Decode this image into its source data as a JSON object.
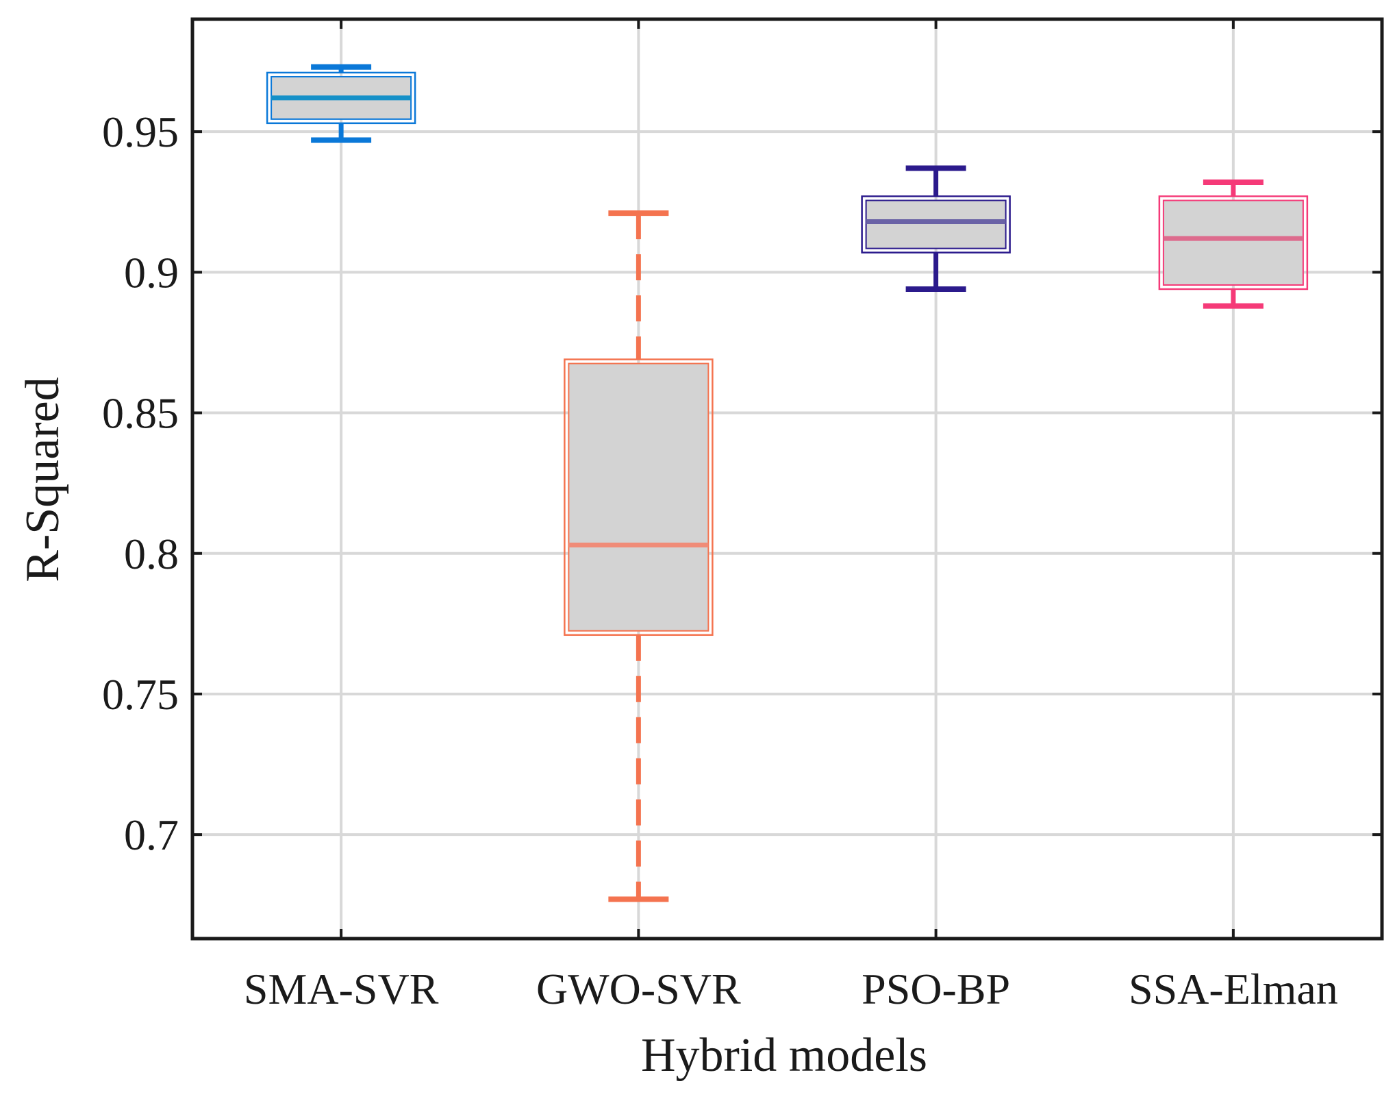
{
  "chart_data": {
    "type": "box",
    "title": "",
    "xlabel": "Hybrid models",
    "ylabel": "R-Squared",
    "ylim": [
      0.663,
      0.99
    ],
    "yticks": [
      0.7,
      0.75,
      0.8,
      0.85,
      0.9,
      0.95
    ],
    "ytick_labels": [
      "0.7",
      "0.75",
      "0.8",
      "0.85",
      "0.9",
      "0.95"
    ],
    "grid": true,
    "categories": [
      "SMA-SVR",
      "GWO-SVR",
      "PSO-BP",
      "SSA-Elman"
    ],
    "boxes": [
      {
        "category": "SMA-SVR",
        "whisker_low": 0.947,
        "q1": 0.953,
        "median": 0.962,
        "q3": 0.971,
        "whisker_high": 0.973,
        "color": "#0a78d8",
        "median_color": "#1590c8"
      },
      {
        "category": "GWO-SVR",
        "whisker_low": 0.677,
        "q1": 0.771,
        "median": 0.803,
        "q3": 0.869,
        "whisker_high": 0.921,
        "color": "#f4734f",
        "median_color": "#f08c78"
      },
      {
        "category": "PSO-BP",
        "whisker_low": 0.894,
        "q1": 0.907,
        "median": 0.918,
        "q3": 0.927,
        "whisker_high": 0.937,
        "color": "#2b1a8c",
        "median_color": "#6a62a6"
      },
      {
        "category": "SSA-Elman",
        "whisker_low": 0.888,
        "q1": 0.894,
        "median": 0.912,
        "q3": 0.927,
        "whisker_high": 0.932,
        "color": "#f53a78",
        "median_color": "#dd6b8d"
      }
    ],
    "box_fill": "#d3d3d3",
    "grid_color": "#d8d8d8",
    "axis_color": "#1a1a1a"
  }
}
